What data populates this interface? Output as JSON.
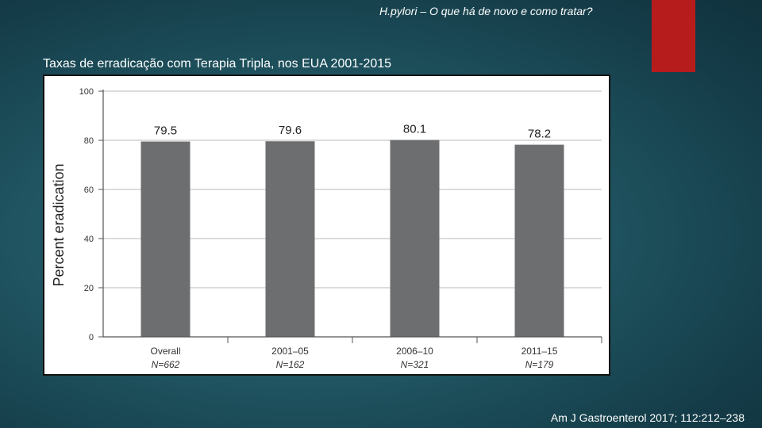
{
  "slide": {
    "header_title": "H.pylori – O que há de novo e como tratar?",
    "subtitle": "Taxas de erradicação com Terapia Tripla, nos EUA 2001-2015",
    "citation": "Am J Gastroenterol 2017; 112:212–238",
    "accent_color": "#b71c1c"
  },
  "chart_data": {
    "type": "bar",
    "categories": [
      "Overall",
      "2001–05",
      "2006–10",
      "2011–15"
    ],
    "n_labels": [
      "N=662",
      "N=162",
      "N=321",
      "N=179"
    ],
    "values": [
      79.5,
      79.6,
      80.1,
      78.2
    ],
    "value_labels": [
      "79.5",
      "79.6",
      "80.1",
      "78.2"
    ],
    "ylabel": "Percent eradication",
    "xlabel": "",
    "ylim": [
      0,
      100
    ],
    "yticks": [
      0,
      20,
      40,
      60,
      80,
      100
    ],
    "grid": true,
    "bar_color": "#6d6e70"
  }
}
